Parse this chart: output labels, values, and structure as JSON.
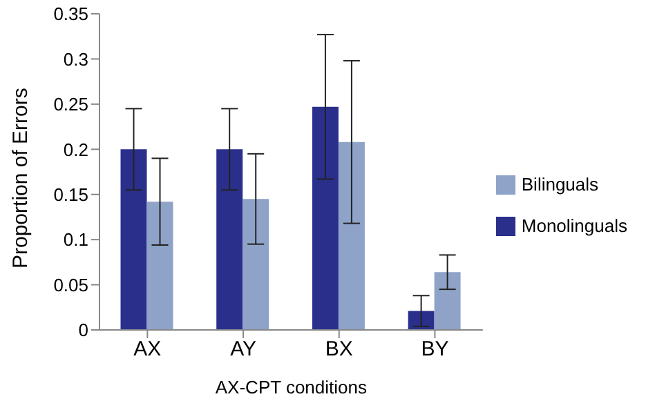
{
  "chart_data": {
    "type": "bar",
    "xlabel": "AX-CPT conditions",
    "ylabel": "Proportion of Errors",
    "categories": [
      "AX",
      "AY",
      "BX",
      "BY"
    ],
    "series": [
      {
        "name": "Monolinguals",
        "color": "#2b2f8c",
        "values": [
          0.2,
          0.2,
          0.247,
          0.021
        ],
        "errors": [
          0.045,
          0.045,
          0.08,
          0.017
        ]
      },
      {
        "name": "Bilinguals",
        "color": "#8fa3c8",
        "values": [
          0.142,
          0.145,
          0.208,
          0.064
        ],
        "errors": [
          0.048,
          0.05,
          0.09,
          0.019
        ]
      }
    ],
    "ylim": [
      0,
      0.35
    ],
    "yticks": [
      0,
      0.05,
      0.1,
      0.15,
      0.2,
      0.25,
      0.3,
      0.35
    ],
    "grid": false,
    "legend": "right"
  }
}
